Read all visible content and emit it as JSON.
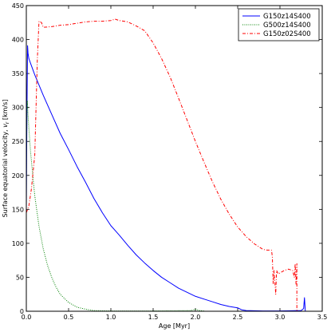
{
  "chart_data": {
    "type": "line",
    "title": "",
    "xlabel": "Age [Myr]",
    "ylabel": "Surface equatorial velocity, v_r [km/s]",
    "xlim": [
      0,
      3.5
    ],
    "ylim": [
      0,
      450
    ],
    "xticks": [
      "0.0",
      "0.5",
      "1.0",
      "1.5",
      "2.0",
      "2.5",
      "3.0",
      "3.5"
    ],
    "yticks": [
      "0",
      "50",
      "100",
      "150",
      "200",
      "250",
      "300",
      "350",
      "400",
      "450"
    ],
    "grid": false,
    "legend_position": "top-right",
    "series": [
      {
        "name": "G150z14S400",
        "color": "#0000ff",
        "style": "solid",
        "points": [
          [
            0.0,
            150
          ],
          [
            0.005,
            250
          ],
          [
            0.01,
            330
          ],
          [
            0.015,
            391
          ],
          [
            0.02,
            380
          ],
          [
            0.03,
            372
          ],
          [
            0.05,
            365
          ],
          [
            0.1,
            348
          ],
          [
            0.2,
            318
          ],
          [
            0.3,
            290
          ],
          [
            0.4,
            262
          ],
          [
            0.5,
            238
          ],
          [
            0.6,
            213
          ],
          [
            0.7,
            190
          ],
          [
            0.8,
            166
          ],
          [
            0.9,
            145
          ],
          [
            1.0,
            126
          ],
          [
            1.05,
            119
          ],
          [
            1.1,
            112
          ],
          [
            1.2,
            97
          ],
          [
            1.3,
            83
          ],
          [
            1.4,
            71
          ],
          [
            1.5,
            60
          ],
          [
            1.6,
            50
          ],
          [
            1.7,
            42
          ],
          [
            1.8,
            34
          ],
          [
            1.9,
            28
          ],
          [
            2.0,
            22
          ],
          [
            2.1,
            18
          ],
          [
            2.2,
            14
          ],
          [
            2.3,
            10
          ],
          [
            2.4,
            7
          ],
          [
            2.5,
            5
          ],
          [
            2.55,
            2
          ],
          [
            2.6,
            1
          ],
          [
            2.8,
            0.5
          ],
          [
            3.0,
            0.5
          ],
          [
            3.25,
            1
          ],
          [
            3.28,
            4
          ],
          [
            3.29,
            20
          ],
          [
            3.3,
            0
          ]
        ]
      },
      {
        "name": "G500z14S400",
        "color": "#008000",
        "style": "dotted",
        "points": [
          [
            0.0,
            150
          ],
          [
            0.003,
            250
          ],
          [
            0.008,
            295
          ],
          [
            0.012,
            310
          ],
          [
            0.02,
            290
          ],
          [
            0.03,
            270
          ],
          [
            0.05,
            235
          ],
          [
            0.08,
            195
          ],
          [
            0.1,
            170
          ],
          [
            0.15,
            125
          ],
          [
            0.2,
            92
          ],
          [
            0.25,
            68
          ],
          [
            0.3,
            50
          ],
          [
            0.35,
            36
          ],
          [
            0.4,
            25
          ],
          [
            0.5,
            13
          ],
          [
            0.6,
            6
          ],
          [
            0.7,
            3
          ],
          [
            0.8,
            1
          ],
          [
            1.0,
            0.5
          ],
          [
            1.5,
            0.5
          ],
          [
            1.95,
            1
          ],
          [
            2.0,
            3
          ],
          [
            2.05,
            1
          ],
          [
            2.1,
            0.5
          ]
        ]
      },
      {
        "name": "G150z02S400",
        "color": "#ff0000",
        "style": "dashdot",
        "points": [
          [
            0.0,
            145
          ],
          [
            0.03,
            155
          ],
          [
            0.06,
            180
          ],
          [
            0.1,
            230
          ],
          [
            0.13,
            370
          ],
          [
            0.15,
            427
          ],
          [
            0.18,
            425
          ],
          [
            0.2,
            418
          ],
          [
            0.3,
            419
          ],
          [
            0.4,
            421
          ],
          [
            0.5,
            422
          ],
          [
            0.6,
            424
          ],
          [
            0.7,
            426
          ],
          [
            0.8,
            427
          ],
          [
            0.9,
            427
          ],
          [
            1.0,
            428
          ],
          [
            1.05,
            430
          ],
          [
            1.1,
            428
          ],
          [
            1.2,
            426
          ],
          [
            1.3,
            420
          ],
          [
            1.4,
            413
          ],
          [
            1.5,
            395
          ],
          [
            1.6,
            372
          ],
          [
            1.7,
            345
          ],
          [
            1.8,
            314
          ],
          [
            1.9,
            282
          ],
          [
            2.0,
            250
          ],
          [
            2.1,
            220
          ],
          [
            2.2,
            191
          ],
          [
            2.3,
            165
          ],
          [
            2.4,
            143
          ],
          [
            2.5,
            124
          ],
          [
            2.6,
            110
          ],
          [
            2.7,
            99
          ],
          [
            2.8,
            91
          ],
          [
            2.85,
            90
          ],
          [
            2.9,
            90
          ],
          [
            2.91,
            80
          ],
          [
            2.92,
            40
          ],
          [
            2.93,
            60
          ],
          [
            2.95,
            25
          ],
          [
            2.96,
            60
          ],
          [
            2.98,
            55
          ],
          [
            3.05,
            60
          ],
          [
            3.1,
            62
          ],
          [
            3.15,
            60
          ],
          [
            3.17,
            50
          ],
          [
            3.18,
            70
          ],
          [
            3.19,
            40
          ],
          [
            3.2,
            70
          ],
          [
            3.2,
            0
          ]
        ]
      }
    ]
  }
}
